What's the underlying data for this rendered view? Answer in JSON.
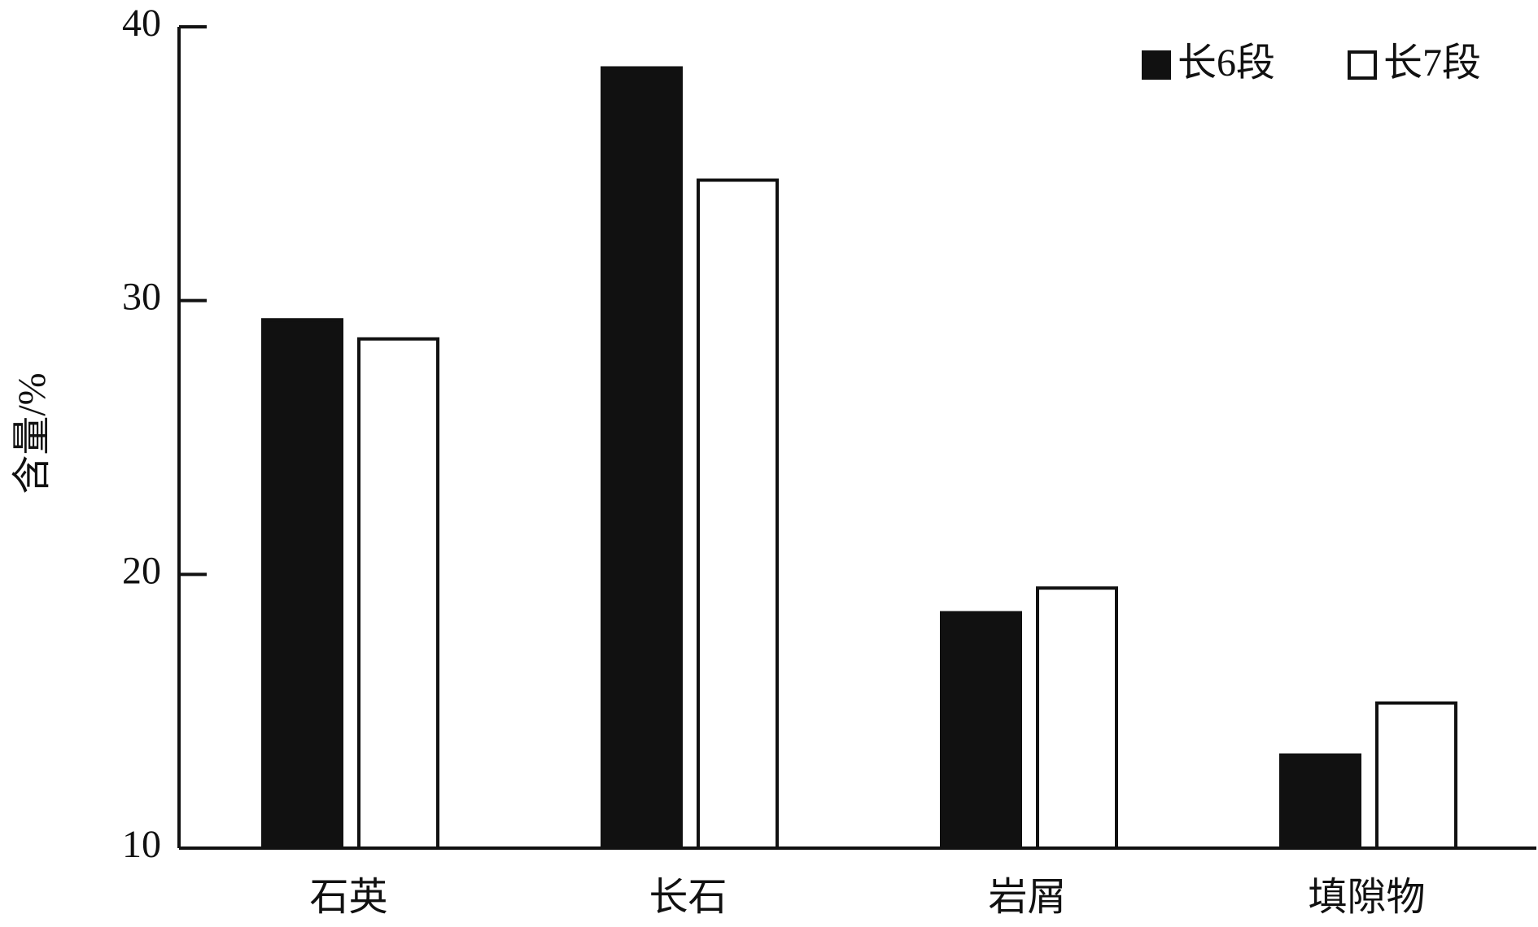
{
  "chart_data": {
    "type": "bar",
    "y_label": "含量/%",
    "categories": [
      "石英",
      "长石",
      "岩屑",
      "填隙物"
    ],
    "series": [
      {
        "name": "长6段",
        "color": "#111111",
        "values": [
          29.3,
          38.5,
          18.6,
          13.4
        ]
      },
      {
        "name": "长7段",
        "color": "#ffffff",
        "values": [
          28.6,
          34.4,
          19.5,
          15.3
        ]
      }
    ],
    "ylim": [
      10,
      40
    ],
    "yticks": [
      10,
      20,
      30,
      40
    ],
    "legend": "upper right"
  }
}
